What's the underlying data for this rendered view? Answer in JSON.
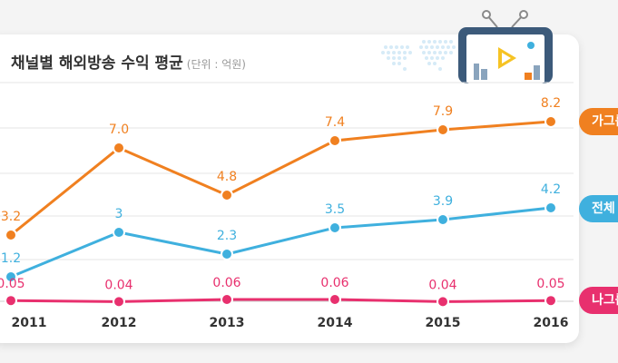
{
  "header": {
    "title": "채널별 해외방송 수익 평균",
    "unit": "(단위 : 억원)"
  },
  "chart_data": {
    "type": "line",
    "categories": [
      "2011",
      "2012",
      "2013",
      "2014",
      "2015",
      "2016"
    ],
    "series": [
      {
        "name": "가그룹",
        "color": "#f08020",
        "values": [
          3.2,
          7.0,
          4.8,
          7.4,
          7.9,
          8.2
        ],
        "labels": [
          "3.2",
          "7.0",
          "4.8",
          "7.4",
          "7.9",
          "8.2"
        ]
      },
      {
        "name": "전체",
        "color": "#3fb0de",
        "values": [
          1.2,
          3,
          2.3,
          3.5,
          3.9,
          4.2
        ],
        "labels": [
          "1.2",
          "3",
          "2.3",
          "3.5",
          "3.9",
          "4.2"
        ]
      },
      {
        "name": "나그룹",
        "color": "#e8306e",
        "values": [
          0.05,
          0.04,
          0.06,
          0.06,
          0.04,
          0.05
        ],
        "labels": [
          "0.05",
          "0.04",
          "0.06",
          "0.06",
          "0.04",
          "0.05"
        ]
      }
    ],
    "grid": true,
    "legend": "right"
  },
  "legend_tags": [
    "가그룹",
    "전체",
    "나그룹"
  ]
}
